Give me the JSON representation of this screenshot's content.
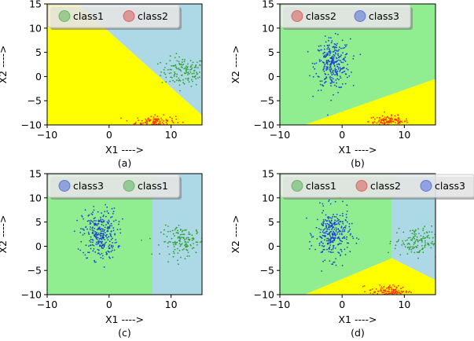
{
  "chart_data": [
    {
      "type": "scatter",
      "caption": "(a)",
      "xlabel": "X1 ---->",
      "ylabel": "X2 ---->",
      "xlim": [
        -10,
        15
      ],
      "ylim": [
        -10,
        15
      ],
      "xticks": [
        -10,
        0,
        10
      ],
      "yticks": [
        -10,
        -5,
        0,
        5,
        10,
        15
      ],
      "legend": {
        "placement": "top-left",
        "entries": [
          "class1",
          "class2"
        ]
      },
      "regions": [
        {
          "class": "class2",
          "color": "#ffff00",
          "polygon": [
            [
              -10,
              15
            ],
            [
              -10,
              -10
            ],
            [
              15,
              -10
            ],
            [
              15,
              -8
            ],
            [
              -5,
              15
            ]
          ]
        },
        {
          "class": "class1",
          "color": "#add8e6",
          "polygon": [
            [
              -5,
              15
            ],
            [
              15,
              -8
            ],
            [
              15,
              15
            ]
          ]
        }
      ],
      "series": [
        {
          "name": "class1",
          "color": "#2ca02c",
          "center": [
            12,
            1
          ],
          "spread": [
            1.8,
            1.5
          ],
          "n": 140
        },
        {
          "name": "class2",
          "color": "#ff3300",
          "center": [
            7.5,
            -9.3
          ],
          "spread": [
            1.6,
            0.6
          ],
          "n": 120
        }
      ]
    },
    {
      "type": "scatter",
      "caption": "(b)",
      "xlabel": "X1 ---->",
      "ylabel": "X2 ---->",
      "xlim": [
        -10,
        15
      ],
      "ylim": [
        -10,
        15
      ],
      "xticks": [
        -10,
        0,
        10
      ],
      "yticks": [
        -10,
        -5,
        0,
        5,
        10,
        15
      ],
      "legend": {
        "placement": "top-left",
        "entries": [
          "class2",
          "class3"
        ]
      },
      "regions": [
        {
          "class": "class3",
          "color": "#90ee90",
          "polygon": [
            [
              -10,
              15
            ],
            [
              -10,
              -10
            ],
            [
              -6,
              -10
            ],
            [
              15,
              -0.5
            ],
            [
              15,
              15
            ]
          ]
        },
        {
          "class": "class2",
          "color": "#ffff00",
          "polygon": [
            [
              -6,
              -10
            ],
            [
              15,
              -10
            ],
            [
              15,
              -0.5
            ]
          ]
        }
      ],
      "series": [
        {
          "name": "class2",
          "color": "#ff3300",
          "center": [
            7.5,
            -9.3
          ],
          "spread": [
            1.6,
            0.6
          ],
          "n": 120
        },
        {
          "name": "class3",
          "color": "#1f3fd6",
          "center": [
            -1.5,
            2.5
          ],
          "spread": [
            1.4,
            2.6
          ],
          "n": 300
        }
      ]
    },
    {
      "type": "scatter",
      "caption": "(c)",
      "xlabel": "X1 ---->",
      "ylabel": "X2 ---->",
      "xlim": [
        -10,
        15
      ],
      "ylim": [
        -10,
        15
      ],
      "xticks": [
        -10,
        0,
        10
      ],
      "yticks": [
        -10,
        -5,
        0,
        5,
        10,
        15
      ],
      "legend": {
        "placement": "top-left",
        "entries": [
          "class3",
          "class1"
        ]
      },
      "regions": [
        {
          "class": "class3",
          "color": "#90ee90",
          "polygon": [
            [
              -10,
              15
            ],
            [
              -10,
              -10
            ],
            [
              7,
              -10
            ],
            [
              7,
              15
            ]
          ]
        },
        {
          "class": "class1",
          "color": "#add8e6",
          "polygon": [
            [
              7,
              15
            ],
            [
              7,
              -10
            ],
            [
              15,
              -10
            ],
            [
              15,
              15
            ]
          ]
        }
      ],
      "series": [
        {
          "name": "class3",
          "color": "#1f3fd6",
          "center": [
            -1.5,
            2.5
          ],
          "spread": [
            1.4,
            2.6
          ],
          "n": 300
        },
        {
          "name": "class1",
          "color": "#2ca02c",
          "center": [
            12,
            1
          ],
          "spread": [
            1.8,
            1.5
          ],
          "n": 140
        }
      ]
    },
    {
      "type": "scatter",
      "caption": "(d)",
      "xlabel": "X1 ---->",
      "ylabel": "X2 ---->",
      "xlim": [
        -10,
        15
      ],
      "ylim": [
        -10,
        15
      ],
      "xticks": [
        -10,
        0,
        10
      ],
      "yticks": [
        -10,
        -5,
        0,
        5,
        10,
        15
      ],
      "legend": {
        "placement": "top-left",
        "entries": [
          "class1",
          "class2",
          "class3"
        ]
      },
      "regions": [
        {
          "class": "class3",
          "color": "#90ee90",
          "polygon": [
            [
              -10,
              15
            ],
            [
              -10,
              -10
            ],
            [
              -6,
              -10
            ],
            [
              8,
              -2.5
            ],
            [
              8,
              15
            ]
          ]
        },
        {
          "class": "class1",
          "color": "#add8e6",
          "polygon": [
            [
              8,
              15
            ],
            [
              8,
              -2.5
            ],
            [
              15,
              -7
            ],
            [
              15,
              15
            ]
          ]
        },
        {
          "class": "class2",
          "color": "#ffff00",
          "polygon": [
            [
              -6,
              -10
            ],
            [
              15,
              -10
            ],
            [
              15,
              -7
            ],
            [
              8,
              -2.5
            ]
          ]
        }
      ],
      "series": [
        {
          "name": "class3",
          "color": "#1f3fd6",
          "center": [
            -1.5,
            2.5
          ],
          "spread": [
            1.4,
            2.6
          ],
          "n": 300
        },
        {
          "name": "class1",
          "color": "#2ca02c",
          "center": [
            12,
            1
          ],
          "spread": [
            1.8,
            1.5
          ],
          "n": 140
        },
        {
          "name": "class2",
          "color": "#ff3300",
          "center": [
            7.5,
            -9.3
          ],
          "spread": [
            1.6,
            0.6
          ],
          "n": 120
        }
      ]
    }
  ],
  "legend_colors": {
    "class1": "#2ca02c",
    "class2": "#d62728",
    "class3": "#1f3fd6"
  }
}
